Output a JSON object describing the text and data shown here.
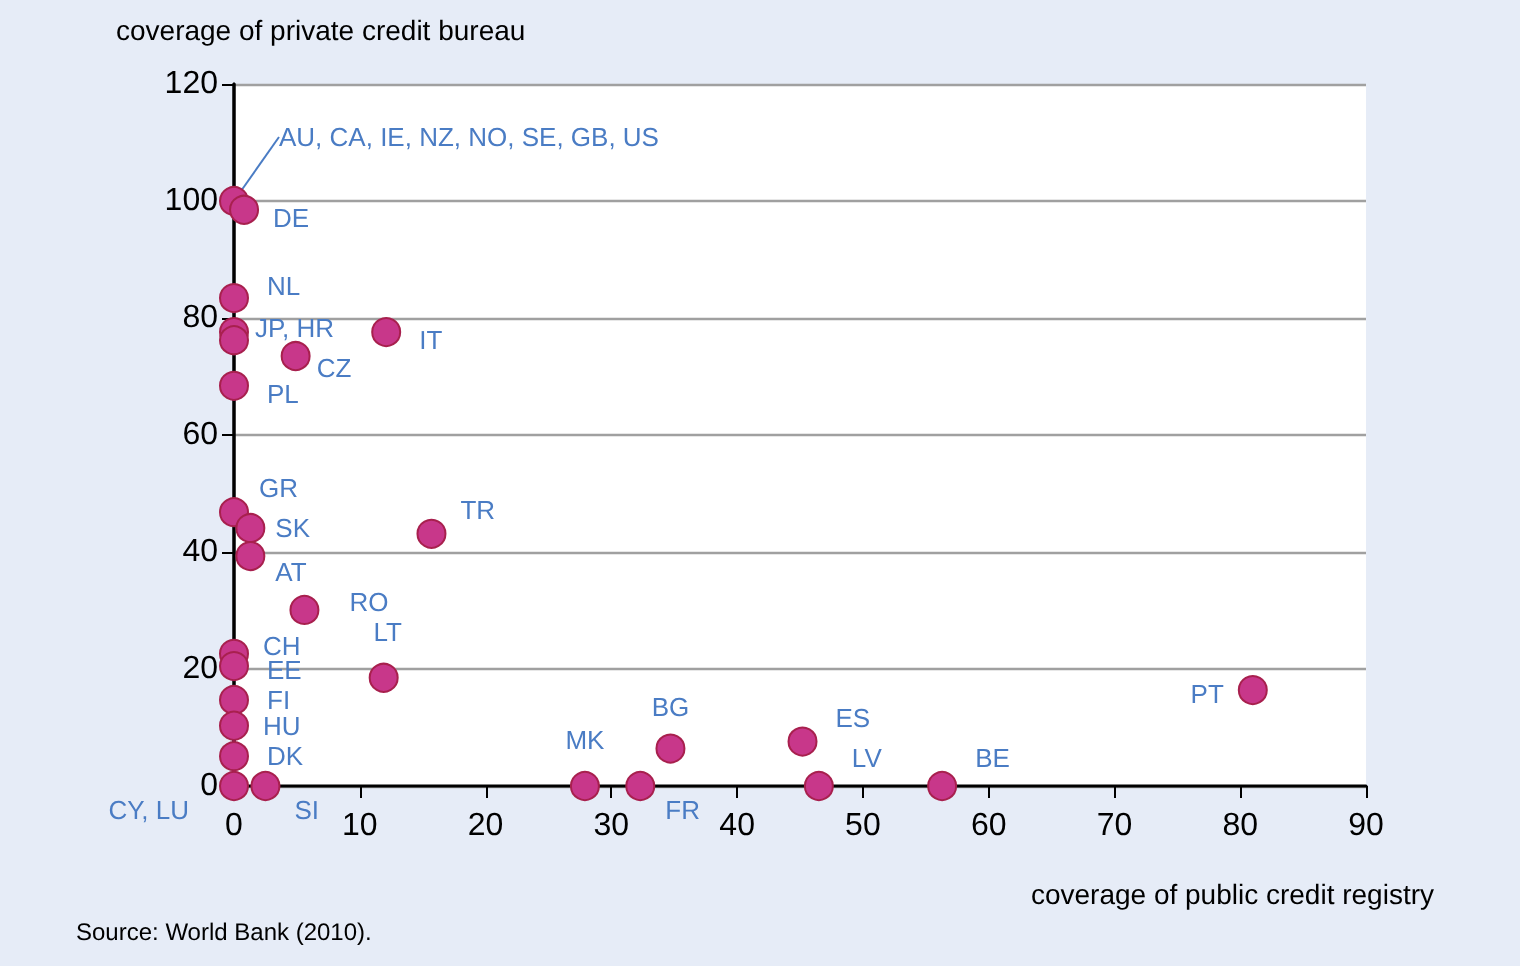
{
  "chart_data": {
    "type": "scatter",
    "xlabel": "coverage of public credit registry",
    "ylabel": "coverage of private credit bureau",
    "x": [
      0,
      0.8,
      0,
      0,
      0,
      12.1,
      4.9,
      0,
      0,
      1.3,
      15.7,
      1.3,
      5.6,
      0,
      0,
      11.9,
      0,
      0,
      0,
      0,
      2.5,
      27.9,
      32.3,
      34.7,
      45.2,
      46.5,
      56.3,
      81.0
    ],
    "series": [
      {
        "color": "#c8378a",
        "values": [
          100,
          98.5,
          83.4,
          77.6,
          76.2,
          77.6,
          73.5,
          68.4,
          46.8,
          44.1,
          43.1,
          39.3,
          30.1,
          22.6,
          20.5,
          18.5,
          14.7,
          10.3,
          5.1,
          0,
          0,
          0,
          0,
          6.4,
          7.6,
          0,
          0,
          16.4
        ]
      }
    ],
    "xlim": [
      0,
      90
    ],
    "xticks": [
      0,
      10,
      20,
      30,
      40,
      50,
      60,
      70,
      80,
      90
    ],
    "ylim": [
      0,
      120
    ],
    "yticks": [
      0,
      20,
      40,
      60,
      80,
      100,
      120
    ],
    "grid": "y",
    "marker": "circle",
    "annotations": [
      {
        "text": "AU, CA, IE, NZ, NO, SE, GB, US",
        "x": 0,
        "y": 100
      },
      {
        "text": "DE",
        "x": 0.8,
        "y": 98.5
      },
      {
        "text": "NL",
        "x": 0,
        "y": 83.4
      },
      {
        "text": "JP, HR",
        "x": 0,
        "y": 77.6
      },
      {
        "text": "IT",
        "x": 12.1,
        "y": 77.6
      },
      {
        "text": "CZ",
        "x": 4.9,
        "y": 73.5
      },
      {
        "text": "PL",
        "x": 0,
        "y": 68.4
      },
      {
        "text": "GR",
        "x": 0,
        "y": 46.8
      },
      {
        "text": "SK",
        "x": 1.3,
        "y": 44.1
      },
      {
        "text": "TR",
        "x": 15.7,
        "y": 43.1
      },
      {
        "text": "AT",
        "x": 1.3,
        "y": 39.3
      },
      {
        "text": "RO",
        "x": 5.6,
        "y": 30.1
      },
      {
        "text": "CH",
        "x": 0,
        "y": 22.6
      },
      {
        "text": "EE",
        "x": 0,
        "y": 20.5
      },
      {
        "text": "LT",
        "x": 11.9,
        "y": 18.5
      },
      {
        "text": "FI",
        "x": 0,
        "y": 14.7
      },
      {
        "text": "HU",
        "x": 0,
        "y": 10.3
      },
      {
        "text": "DK",
        "x": 0,
        "y": 5.1
      },
      {
        "text": "CY, LU",
        "x": 0,
        "y": 0
      },
      {
        "text": "SI",
        "x": 2.5,
        "y": 0
      },
      {
        "text": "MK",
        "x": 27.9,
        "y": 0
      },
      {
        "text": "FR",
        "x": 32.3,
        "y": 0
      },
      {
        "text": "BG",
        "x": 34.7,
        "y": 6.4
      },
      {
        "text": "ES",
        "x": 45.2,
        "y": 7.6
      },
      {
        "text": "LV",
        "x": 46.5,
        "y": 0
      },
      {
        "text": "BE",
        "x": 56.3,
        "y": 0
      },
      {
        "text": "PT",
        "x": 81.0,
        "y": 16.4
      },
      "Source: World Bank (2010)."
    ]
  }
}
